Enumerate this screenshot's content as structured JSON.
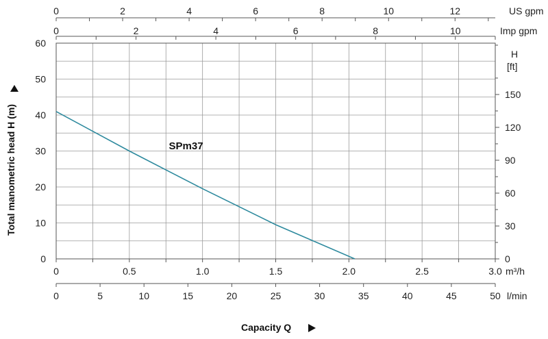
{
  "chart_data": {
    "type": "line",
    "series": [
      {
        "name": "SPm37",
        "x": [
          0,
          0.5,
          1.0,
          1.5,
          2.04
        ],
        "y": [
          41,
          30,
          19.5,
          9.5,
          0
        ]
      }
    ],
    "series_color": "#2e8a9e",
    "grid": true,
    "x_axis": {
      "label": "m³/h",
      "lim": [
        0,
        3.0
      ],
      "ticks": [
        0,
        0.5,
        1.0,
        1.5,
        2.0,
        2.5,
        3.0
      ],
      "tick_labels": [
        "0",
        "0.5",
        "1.0",
        "1.5",
        "2.0",
        "2.5",
        "3.0"
      ]
    },
    "x_axis_lmin": {
      "label": "l/min",
      "lim": [
        0,
        50
      ],
      "ticks": [
        0,
        5,
        10,
        15,
        20,
        25,
        30,
        35,
        40,
        45,
        50
      ],
      "tick_labels": [
        "0",
        "5",
        "10",
        "15",
        "20",
        "25",
        "30",
        "35",
        "40",
        "45",
        "50"
      ]
    },
    "x_axis_usgpm": {
      "label": "US gpm",
      "lim": [
        0,
        13.21
      ],
      "ticks": [
        0,
        2,
        4,
        6,
        8,
        10,
        12
      ],
      "tick_labels": [
        "0",
        "2",
        "4",
        "6",
        "8",
        "10",
        "12"
      ]
    },
    "x_axis_impgpm": {
      "label": "Imp gpm",
      "lim": [
        0,
        11.0
      ],
      "ticks": [
        0,
        2,
        4,
        6,
        8,
        10
      ],
      "tick_labels": [
        "0",
        "2",
        "4",
        "6",
        "8",
        "10"
      ]
    },
    "y_axis": {
      "label": "Total manometric head H (m)",
      "lim": [
        0,
        60
      ],
      "ticks": [
        0,
        10,
        20,
        30,
        40,
        50,
        60
      ],
      "tick_labels": [
        "0",
        "10",
        "20",
        "30",
        "40",
        "50",
        "60"
      ]
    },
    "y_axis_ft": {
      "label_line1": "H",
      "label_line2": "[ft]",
      "lim": [
        0,
        196.85
      ],
      "ticks": [
        0,
        30,
        60,
        90,
        120,
        150
      ],
      "tick_labels": [
        "0",
        "30",
        "60",
        "90",
        "120",
        "150"
      ]
    },
    "xlabel": "Capacity Q"
  }
}
